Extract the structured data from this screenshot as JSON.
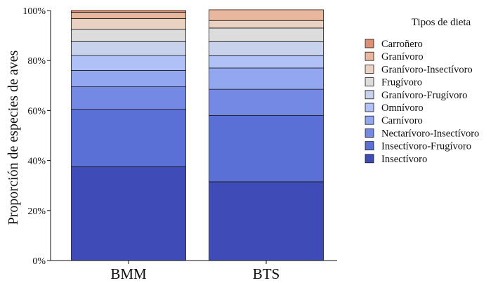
{
  "chart_data": {
    "type": "bar",
    "stacked": true,
    "categories": [
      "BMM",
      "BTS"
    ],
    "ylabel": "Proporción de especies de aves",
    "xlabel": "",
    "ylim": [
      0,
      100
    ],
    "yticks": [
      0,
      20,
      40,
      60,
      80,
      100
    ],
    "ytick_labels": [
      "0%",
      "20%",
      "40%",
      "60%",
      "80%",
      "100%"
    ],
    "grid": false,
    "legend": {
      "title": "Tipos de dieta",
      "position": "right"
    },
    "series": [
      {
        "name": "Insectívoro",
        "color": "#3f4cb8",
        "values": [
          37.5,
          31.5
        ]
      },
      {
        "name": "Insectívoro-Frugívoro",
        "color": "#5b70d6",
        "values": [
          23.0,
          26.5
        ]
      },
      {
        "name": "Nectarívoro-Insectívoro",
        "color": "#7489e4",
        "values": [
          9.0,
          10.5
        ]
      },
      {
        "name": "Carnívoro",
        "color": "#93a7f0",
        "values": [
          6.5,
          8.5
        ]
      },
      {
        "name": "Omnívoro",
        "color": "#afc1f7",
        "values": [
          6.0,
          4.9
        ]
      },
      {
        "name": "Granívoro-Frugívoro",
        "color": "#c8d2ec",
        "values": [
          5.5,
          5.6
        ]
      },
      {
        "name": "Frugívoro",
        "color": "#dcdcdc",
        "values": [
          5.0,
          5.5
        ]
      },
      {
        "name": "Granívoro-Insectívoro",
        "color": "#ead2c2",
        "values": [
          4.3,
          3.0
        ]
      },
      {
        "name": "Granívoro",
        "color": "#e8b79d",
        "values": [
          2.5,
          4.3
        ]
      },
      {
        "name": "Carroñero",
        "color": "#de8f73",
        "values": [
          0.7,
          0.0
        ]
      }
    ]
  }
}
